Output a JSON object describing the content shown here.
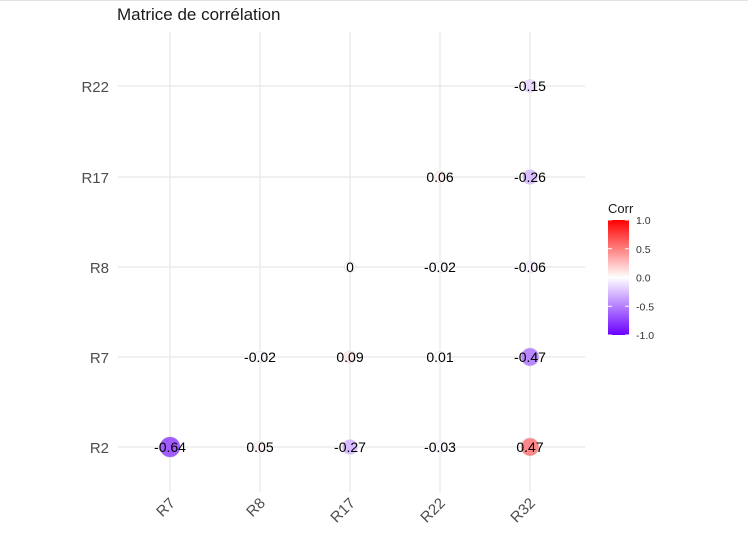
{
  "chart_data": {
    "type": "heatmap",
    "title": "Matrice de corrélation",
    "x_categories": [
      "R7",
      "R8",
      "R17",
      "R22",
      "R32"
    ],
    "y_categories": [
      "R2",
      "R7",
      "R8",
      "R17",
      "R22"
    ],
    "cells": [
      {
        "x": "R7",
        "y": "R2",
        "value": -0.64,
        "label": "-0.64"
      },
      {
        "x": "R8",
        "y": "R2",
        "value": 0.05,
        "label": "0.05"
      },
      {
        "x": "R17",
        "y": "R2",
        "value": -0.27,
        "label": "-0.27"
      },
      {
        "x": "R22",
        "y": "R2",
        "value": -0.03,
        "label": "-0.03"
      },
      {
        "x": "R32",
        "y": "R2",
        "value": 0.47,
        "label": "0.47"
      },
      {
        "x": "R8",
        "y": "R7",
        "value": -0.02,
        "label": "-0.02"
      },
      {
        "x": "R17",
        "y": "R7",
        "value": 0.09,
        "label": "0.09"
      },
      {
        "x": "R22",
        "y": "R7",
        "value": 0.01,
        "label": "0.01"
      },
      {
        "x": "R32",
        "y": "R7",
        "value": -0.47,
        "label": "-0.47"
      },
      {
        "x": "R17",
        "y": "R8",
        "value": 0.0,
        "label": "0"
      },
      {
        "x": "R22",
        "y": "R8",
        "value": -0.02,
        "label": "-0.02"
      },
      {
        "x": "R32",
        "y": "R8",
        "value": -0.06,
        "label": "-0.06"
      },
      {
        "x": "R22",
        "y": "R17",
        "value": 0.06,
        "label": "0.06"
      },
      {
        "x": "R32",
        "y": "R17",
        "value": -0.26,
        "label": "-0.26"
      },
      {
        "x": "R32",
        "y": "R22",
        "value": -0.15,
        "label": "-0.15"
      }
    ],
    "legend": {
      "title": "Corr",
      "ticks": [
        {
          "value": 1.0,
          "label": "1.0"
        },
        {
          "value": 0.5,
          "label": "0.5"
        },
        {
          "value": 0.0,
          "label": "0.0"
        },
        {
          "value": -0.5,
          "label": "-0.5"
        },
        {
          "value": -1.0,
          "label": "-1.0"
        }
      ],
      "placement": "right"
    },
    "colors": {
      "low": "#6a00ff",
      "mid": "#ffffff",
      "high": "#ff0000"
    },
    "value_range": [
      -1,
      1
    ],
    "grid": true,
    "marker": "circle sized by |value|"
  }
}
